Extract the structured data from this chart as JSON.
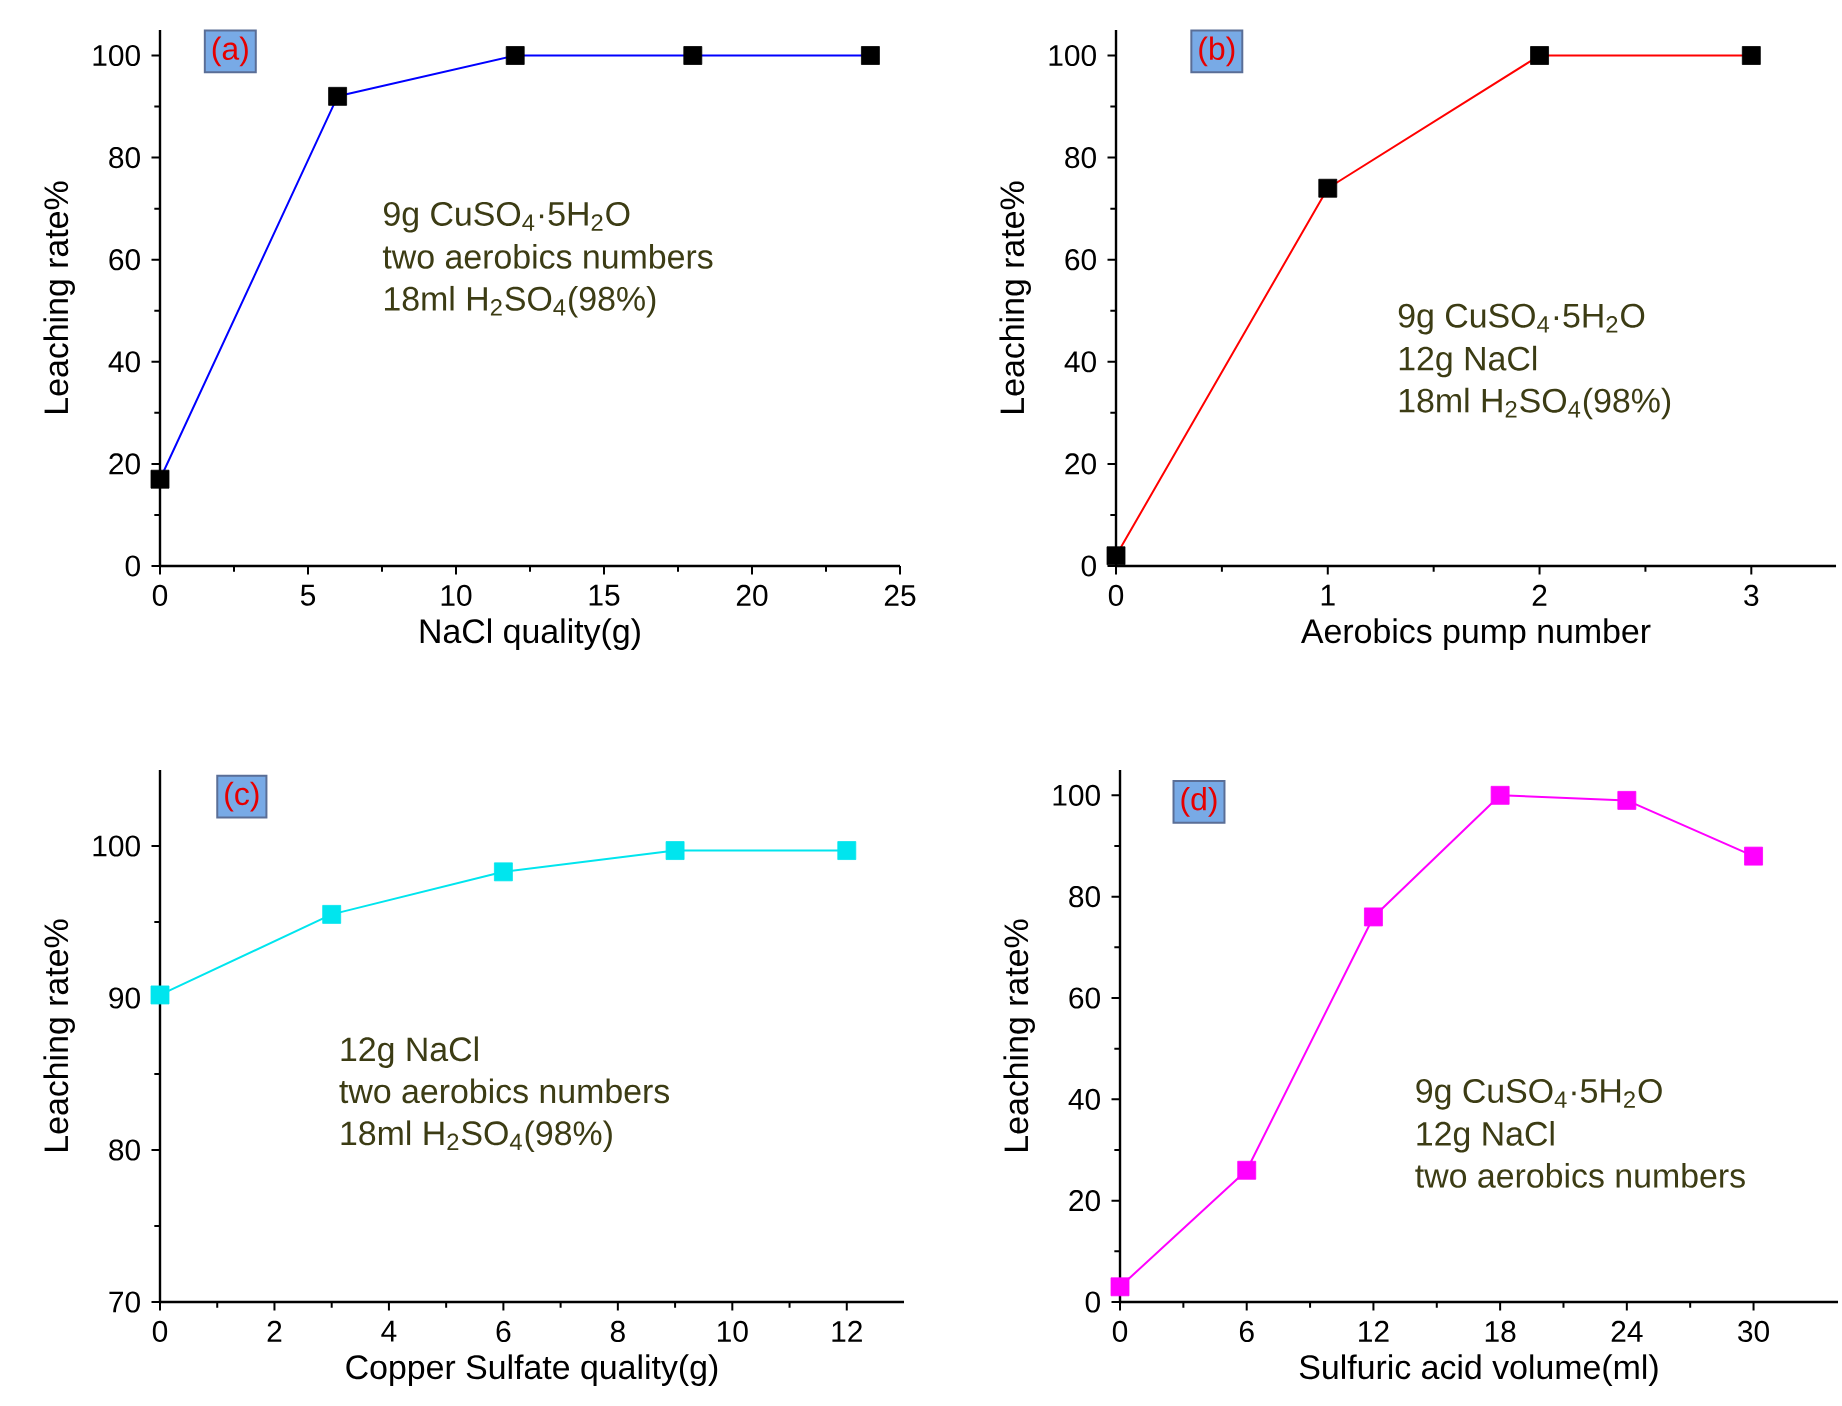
{
  "chart_data": [
    {
      "type": "line",
      "x": [
        0,
        6,
        12,
        18,
        24
      ],
      "series": [
        {
          "color": "#0000ff",
          "colors": [
            "#000000",
            "#000000",
            "#000000",
            "#000000",
            "#000000"
          ],
          "values": [
            17,
            92,
            100,
            100,
            100
          ]
        }
      ],
      "xlim": [
        0,
        25
      ],
      "xticks": [
        0,
        5,
        10,
        15,
        20,
        25
      ],
      "ylim": [
        0,
        105
      ],
      "yticks": [
        0,
        20,
        40,
        60,
        80,
        100
      ],
      "xlabel": "NaCl  quality(g)",
      "ylabel": "Leaching rate%",
      "marker": "square",
      "annotations": [
        "(a)",
        "9g CuSO$_{4}$·5H$_{2}$O",
        "two aerobics numbers",
        "18ml H$_{2}$SO$_{4}$(98%)"
      ]
    },
    {
      "type": "line",
      "x": [
        0,
        1,
        2,
        3
      ],
      "series": [
        {
          "color": "#ff0000",
          "colors": [
            "#000000",
            "#000000",
            "#000000",
            "#000000"
          ],
          "values": [
            2,
            74,
            100,
            100
          ]
        }
      ],
      "xlim": [
        0,
        3.4
      ],
      "xticks": [
        0,
        1,
        2,
        3
      ],
      "ylim": [
        0,
        105
      ],
      "yticks": [
        0,
        20,
        40,
        60,
        80,
        100
      ],
      "xlabel": "Aerobics pump number",
      "ylabel": "Leaching rate%",
      "marker": "square",
      "annotations": [
        "(b)",
        "9g CuSO$_{4}$·5H$_{2}$O",
        "12g NaCl",
        "18ml H$_{2}$SO$_{4}$(98%)"
      ]
    },
    {
      "type": "line",
      "x": [
        0,
        3,
        6,
        9,
        12
      ],
      "series": [
        {
          "color": "#00e5ee",
          "values": [
            90.2,
            95.5,
            98.3,
            99.7,
            99.7
          ]
        }
      ],
      "xlim": [
        0,
        13
      ],
      "xticks": [
        0,
        2,
        4,
        6,
        8,
        10,
        12
      ],
      "ylim": [
        70,
        105
      ],
      "yticks": [
        70,
        80,
        90,
        100
      ],
      "xlabel": "Copper Sulfate quality(g)",
      "ylabel": "Leaching rate%",
      "marker": "square",
      "annotations": [
        "(c)",
        "12g NaCl",
        "two aerobics numbers",
        "18ml H$_{2}$SO$_{4}$(98%)"
      ]
    },
    {
      "type": "line",
      "x": [
        0,
        6,
        12,
        18,
        24,
        30
      ],
      "series": [
        {
          "color": "#ff00ff",
          "values": [
            3,
            26,
            76,
            100,
            99,
            88
          ]
        }
      ],
      "xlim": [
        0,
        34
      ],
      "xticks": [
        0,
        6,
        12,
        18,
        24,
        30
      ],
      "ylim": [
        0,
        105
      ],
      "yticks": [
        0,
        20,
        40,
        60,
        80,
        100
      ],
      "xlabel": "Sulfuric acid volume(ml)",
      "ylabel": "Leaching rate%",
      "marker": "square",
      "annotations": [
        "(d)",
        "9g CuSO$_{4}$·5H$_{2}$O",
        "12g NaCl",
        "two aerobics numbers"
      ]
    }
  ]
}
